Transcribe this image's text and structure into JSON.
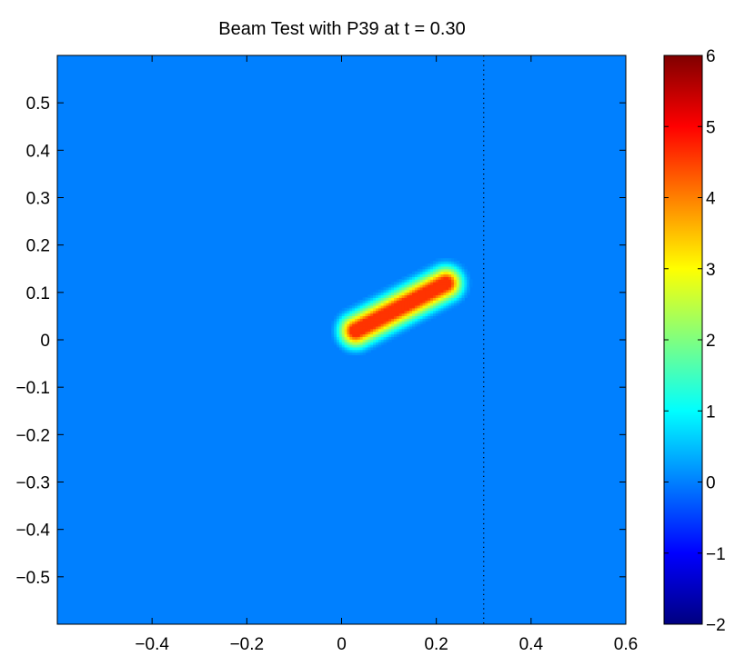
{
  "chart_data": {
    "type": "heatmap",
    "title": "Beam Test with P39 at t = 0.30",
    "xlabel": "",
    "ylabel": "",
    "xlim": [
      -0.6,
      0.6
    ],
    "ylim": [
      -0.6,
      0.6
    ],
    "x_ticks": [
      {
        "value": -0.4,
        "label": "−0.4"
      },
      {
        "value": -0.2,
        "label": "−0.2"
      },
      {
        "value": 0,
        "label": "0"
      },
      {
        "value": 0.2,
        "label": "0.2"
      },
      {
        "value": 0.4,
        "label": "0.4"
      },
      {
        "value": 0.6,
        "label": "0.6"
      }
    ],
    "y_ticks": [
      {
        "value": 0.5,
        "label": "0.5"
      },
      {
        "value": 0.4,
        "label": "0.4"
      },
      {
        "value": 0.3,
        "label": "0.3"
      },
      {
        "value": 0.2,
        "label": "0.2"
      },
      {
        "value": 0.1,
        "label": "0.1"
      },
      {
        "value": 0,
        "label": "0"
      },
      {
        "value": -0.1,
        "label": "−0.1"
      },
      {
        "value": -0.2,
        "label": "−0.2"
      },
      {
        "value": -0.3,
        "label": "−0.3"
      },
      {
        "value": -0.4,
        "label": "−0.4"
      },
      {
        "value": -0.5,
        "label": "−0.5"
      }
    ],
    "background_value": 0,
    "beam": {
      "start": [
        0.03,
        0.02
      ],
      "end": [
        0.22,
        0.12
      ],
      "peak_value": 4.6,
      "half_width": 0.012,
      "falloff": 0.045
    },
    "reference_line": {
      "x": 0.3,
      "style": "dotted"
    },
    "colorbar": {
      "colormap": "jet",
      "range": [
        -2,
        6
      ],
      "ticks": [
        {
          "value": 6,
          "label": "6"
        },
        {
          "value": 5,
          "label": "5"
        },
        {
          "value": 4,
          "label": "4"
        },
        {
          "value": 3,
          "label": "3"
        },
        {
          "value": 2,
          "label": "2"
        },
        {
          "value": 1,
          "label": "1"
        },
        {
          "value": 0,
          "label": "0"
        },
        {
          "value": -1,
          "label": "−1"
        },
        {
          "value": -2,
          "label": "−2"
        }
      ]
    },
    "grid": false
  }
}
